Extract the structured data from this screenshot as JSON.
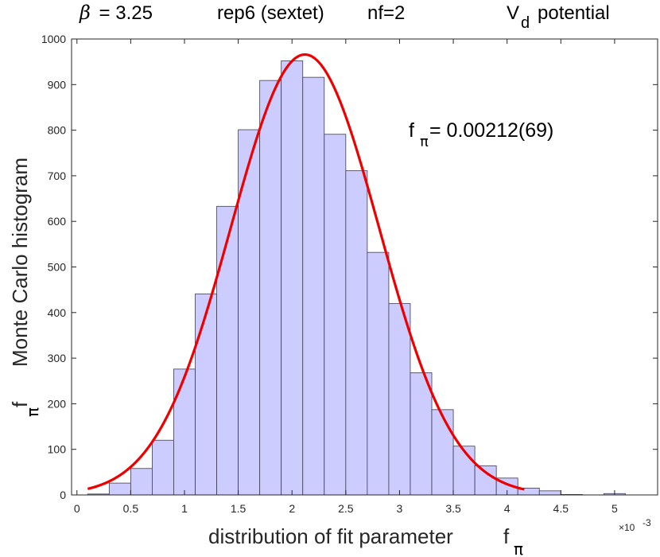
{
  "chart_data": {
    "type": "bar",
    "title": {
      "beta_symbol": "β",
      "beta_value": "= 3.25",
      "rep": "rep6 (sextet)",
      "nf": "nf=2",
      "potential_base": "V",
      "potential_sub": "d",
      "potential_word": "potential"
    },
    "xlabel": {
      "text": "distribution of fit parameter",
      "symbol": "f",
      "sub": "π"
    },
    "ylabel": {
      "text": "Monte Carlo histogram",
      "symbol": "f",
      "sub": "π"
    },
    "x_exponent": {
      "base": "×10",
      "power": "-3"
    },
    "annotation": {
      "symbol": "f",
      "sub": "π",
      "value": " = 0.00212(69)"
    },
    "xlim": [
      -0.05,
      5.4
    ],
    "ylim": [
      0,
      1000
    ],
    "x_ticks": [
      0,
      0.5,
      1,
      1.5,
      2,
      2.5,
      3,
      3.5,
      4,
      4.5,
      5
    ],
    "x_tick_labels": [
      "0",
      "0.5",
      "1",
      "1.5",
      "2",
      "2.5",
      "3",
      "3.5",
      "4",
      "4.5",
      "5"
    ],
    "y_ticks": [
      0,
      100,
      200,
      300,
      400,
      500,
      600,
      700,
      800,
      900,
      1000
    ],
    "y_tick_labels": [
      "0",
      "100",
      "200",
      "300",
      "400",
      "500",
      "600",
      "700",
      "800",
      "900",
      "1000"
    ],
    "bin_width": 0.2,
    "bin_starts": [
      0.1,
      0.3,
      0.5,
      0.7,
      0.9,
      1.1,
      1.3,
      1.5,
      1.7,
      1.9,
      2.1,
      2.3,
      2.5,
      2.7,
      2.9,
      3.1,
      3.3,
      3.5,
      3.7,
      3.9,
      4.1,
      4.3,
      4.5,
      4.7,
      4.9
    ],
    "counts": [
      2,
      26,
      58,
      120,
      276,
      441,
      633,
      801,
      909,
      952,
      916,
      791,
      711,
      532,
      420,
      268,
      187,
      107,
      64,
      37,
      15,
      9,
      1,
      0,
      3
    ],
    "fit_curve": {
      "type": "gaussian",
      "amplitude": 966,
      "mean": 2.12,
      "sigma": 0.69,
      "x_range": [
        0.1,
        4.16
      ]
    },
    "colors": {
      "bar_fill": "#ccccff",
      "bar_edge": "#3c3c50",
      "fit_line": "#ee0000",
      "axis": "#262626"
    },
    "grid": false,
    "legend": "none"
  }
}
